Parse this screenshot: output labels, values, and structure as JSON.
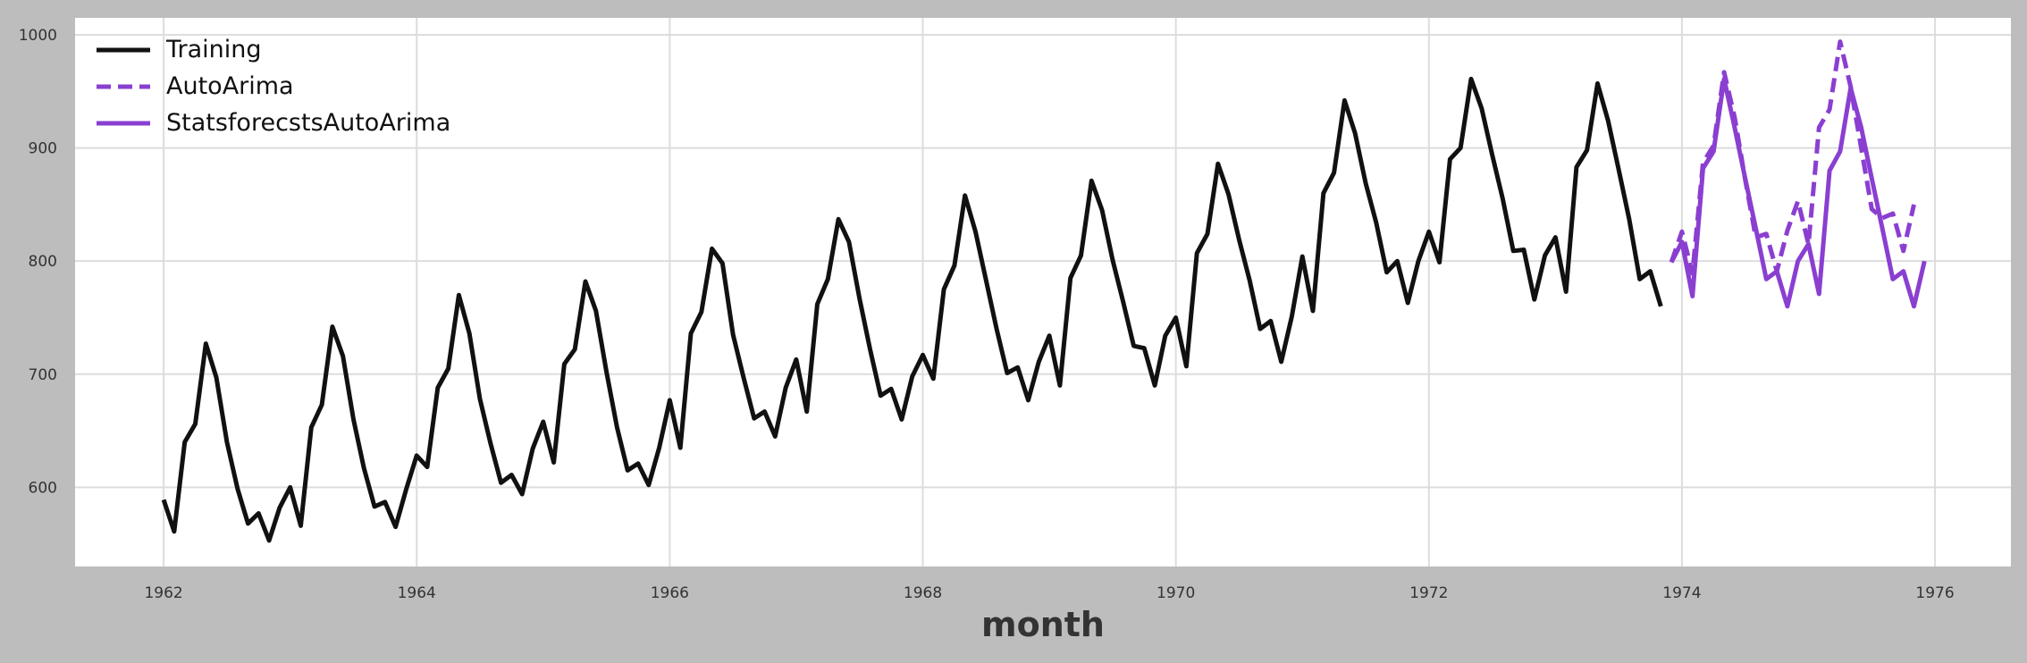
{
  "chart_data": {
    "type": "line",
    "title": "",
    "xlabel": "month",
    "ylabel": "",
    "xlim": [
      1961.3,
      1976.6
    ],
    "ylim": [
      530,
      1015
    ],
    "xticks": [
      1962,
      1964,
      1966,
      1968,
      1970,
      1972,
      1974,
      1976
    ],
    "xtick_labels": [
      "1962",
      "1964",
      "1966",
      "1968",
      "1970",
      "1972",
      "1974",
      "1976"
    ],
    "yticks": [
      600,
      700,
      800,
      900,
      1000
    ],
    "ytick_labels": [
      "600",
      "700",
      "800",
      "900",
      "1000"
    ],
    "grid": true,
    "legend_position": "top-left",
    "colors": {
      "background": "#bdbdbd",
      "plot_area": "#ffffff",
      "grid": "#dddddd",
      "training": "#111111",
      "forecast": "#8a3fd1"
    },
    "series": [
      {
        "name": "Training",
        "style": "solid",
        "color": "#111111",
        "x_start": "1962-01",
        "values": [
          589,
          561,
          640,
          656,
          727,
          697,
          640,
          599,
          568,
          577,
          553,
          582,
          600,
          566,
          653,
          673,
          742,
          716,
          660,
          617,
          583,
          587,
          565,
          598,
          628,
          618,
          688,
          705,
          770,
          736,
          678,
          639,
          604,
          611,
          594,
          634,
          658,
          622,
          709,
          722,
          782,
          756,
          702,
          653,
          615,
          621,
          602,
          635,
          677,
          635,
          736,
          755,
          811,
          798,
          735,
          697,
          661,
          667,
          645,
          688,
          713,
          667,
          762,
          784,
          837,
          817,
          767,
          722,
          681,
          687,
          660,
          698,
          717,
          696,
          775,
          796,
          858,
          826,
          783,
          740,
          701,
          706,
          677,
          711,
          734,
          690,
          785,
          805,
          871,
          845,
          801,
          764,
          725,
          723,
          690,
          734,
          750,
          707,
          807,
          824,
          886,
          859,
          819,
          783,
          740,
          747,
          711,
          751,
          804,
          756,
          860,
          878,
          942,
          913,
          869,
          834,
          790,
          800,
          763,
          800,
          826,
          799,
          890,
          900,
          961,
          935,
          894,
          855,
          809,
          810,
          766,
          805,
          821,
          773,
          883,
          898,
          957,
          924,
          881,
          837,
          784,
          791,
          760
        ]
      },
      {
        "name": "AutoArima",
        "style": "dashed",
        "color": "#8a3fd1",
        "x_start": "1973-12",
        "values": [
          799,
          826,
          789,
          887,
          902,
          967,
          927,
          872,
          821,
          824,
          791,
          827,
          853,
          815,
          918,
          934,
          994,
          954,
          900,
          846,
          838,
          842,
          809,
          850
        ]
      },
      {
        "name": "StatsforecstsAutoArima",
        "style": "solid",
        "color": "#8a3fd1",
        "x_start": "1973-12",
        "values": [
          799,
          817,
          769,
          882,
          897,
          961,
          918,
          873,
          829,
          784,
          791,
          760,
          800,
          815,
          771,
          880,
          897,
          953,
          918,
          873,
          829,
          784,
          791,
          760,
          800
        ]
      }
    ]
  }
}
